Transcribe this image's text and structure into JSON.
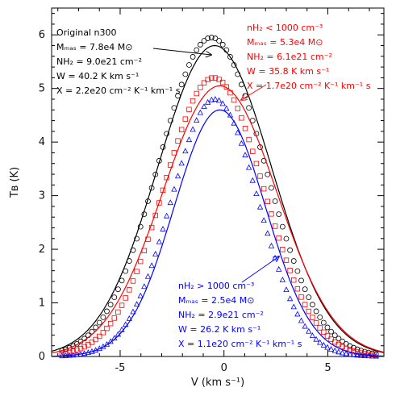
{
  "chart_data": {
    "type": "line",
    "xlabel": "V (km s⁻¹)",
    "ylabel": "Tʙ (K)",
    "xlim": [
      -8.3,
      7.7
    ],
    "ylim": [
      0,
      6.5
    ],
    "x_ticks": [
      -5,
      0,
      5
    ],
    "y_ticks": [
      0,
      1,
      2,
      3,
      4,
      5,
      6
    ],
    "grid": false,
    "series": [
      {
        "color": "#000000",
        "marker": "circle",
        "peak": 5.95,
        "center": -0.6,
        "sigma": 2.55,
        "fit_peak": 5.8,
        "fit_center": -0.45,
        "fit_sigma": 2.75
      },
      {
        "color": "#ff0000",
        "marker": "square",
        "peak": 5.2,
        "center": -0.5,
        "sigma": 2.4,
        "fit_peak": 5.05,
        "fit_center": -0.2,
        "fit_sigma": 2.75
      },
      {
        "color": "#0000ff",
        "marker": "triangle",
        "peak": 4.8,
        "center": -0.45,
        "sigma": 2.1,
        "fit_peak": 4.6,
        "fit_center": -0.2,
        "fit_sigma": 2.2
      }
    ],
    "annotations": [
      {
        "color": "#000000",
        "lines": [
          "Original n300",
          "Mₘₐₛ = 7.8e4 M⊙",
          "NΗ₂ = 9.0e21 cm⁻²",
          "W = 40.2 K km s⁻¹",
          "X = 2.2e20 cm⁻² K⁻¹ km⁻¹ s"
        ]
      },
      {
        "color": "#ff0000",
        "lines": [
          "nΗ₂ < 1000 cm⁻³",
          "Mₘₐₛ = 5.3e4 M⊙",
          "NΗ₂ = 6.1e21 cm⁻²",
          "W = 35.8 K km s⁻¹",
          "X = 1.7e20 cm⁻² K⁻¹ km⁻¹ s"
        ]
      },
      {
        "color": "#0000ff",
        "lines": [
          "nΗ₂ > 1000 cm⁻³",
          "Mₘₐₛ = 2.5e4 M⊙",
          "NΗ₂ = 2.9e21 cm⁻²",
          "W = 26.2 K km s⁻¹",
          "X = 1.1e20 cm⁻² K⁻¹ km⁻¹ s"
        ]
      }
    ]
  }
}
